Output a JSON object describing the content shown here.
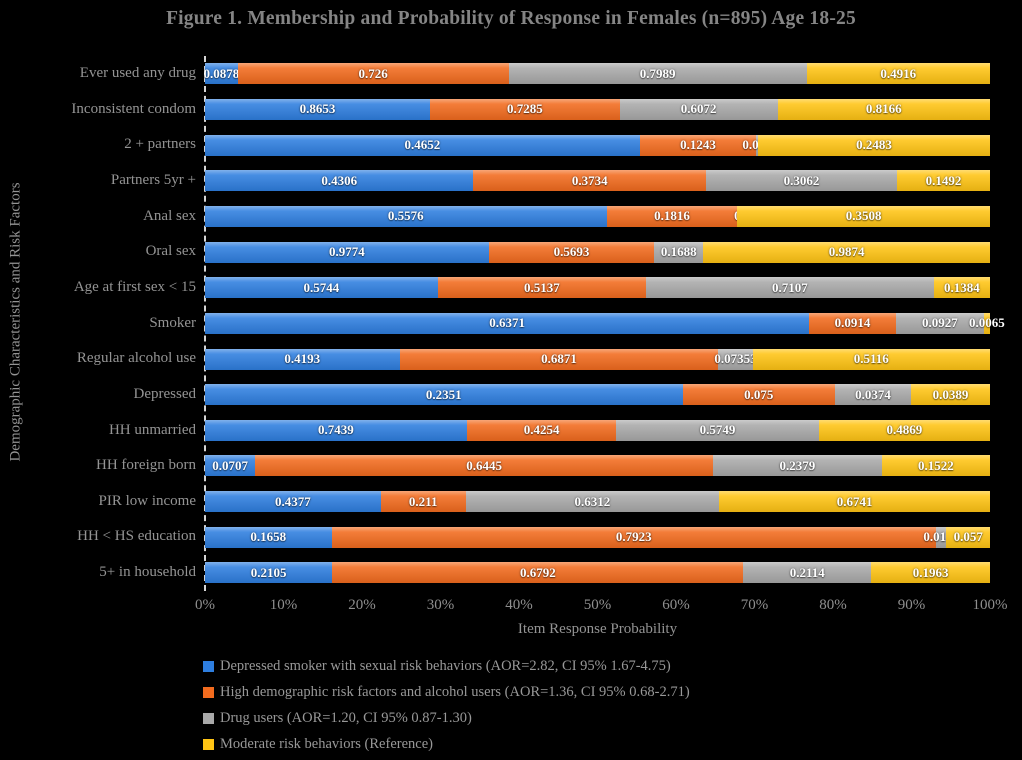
{
  "title": "Figure 1. Membership and Probability of Response in Females (n=895) Age 18-25",
  "colors": {
    "background": "#000000",
    "title_text": "#858585",
    "axis_text": "#949494",
    "value_label_text": "#ffffff",
    "blue": "#2E7EDF",
    "orange": "#F26B1E",
    "gray": "#A9A9A9",
    "yellow": "#FFC414"
  },
  "chart_data": {
    "type": "bar",
    "subtype": "100%-stacked-horizontal",
    "title": "Figure 1. Membership and Probability of Response in Females (n=895) Age 18-25",
    "xlabel": "Item Response Probability",
    "ylabel": "Demographic Characteristics and Risk Factors",
    "x_ticks": [
      "0%",
      "10%",
      "20%",
      "30%",
      "40%",
      "50%",
      "60%",
      "70%",
      "80%",
      "90%",
      "100%"
    ],
    "xlim": [
      0,
      1
    ],
    "grid": false,
    "legend_position": "bottom-left",
    "categories": [
      "Ever used any drug",
      "Inconsistent condom",
      "2 + partners",
      "Partners 5yr +",
      "Anal sex",
      "Oral sex",
      "Age at first sex < 15",
      "Smoker",
      "Regular alcohol use",
      "Depressed",
      "HH unmarried",
      "HH foreign born",
      "PIR low income",
      "HH < HS education",
      "5+ in household"
    ],
    "series": [
      {
        "name": "Depressed smoker with sexual risk behaviors (AOR=2.82, CI 95% 1.67-4.75)",
        "color": "#2E7EDF",
        "values": [
          "0.0878",
          "0.8653",
          "0.4652",
          "0.4306",
          "0.5576",
          "0.9774",
          "0.5744",
          "0.6371",
          "0.4193",
          "0.2351",
          "0.7439",
          "0.0707",
          "0.4377",
          "0.1658",
          "0.2105"
        ]
      },
      {
        "name": "High demographic risk factors and alcohol users (AOR=1.36, CI 95% 0.68-2.71)",
        "color": "#F26B1E",
        "values": [
          "0.726",
          "0.7285",
          "0.1243",
          "0.3734",
          "0.1816",
          "0.5693",
          "0.5137",
          "0.0914",
          "0.6871",
          "0.075",
          "0.4254",
          "0.6445",
          "0.211",
          "0.7923",
          "0.6792"
        ]
      },
      {
        "name": "Drug users (AOR=1.20, CI 95% 0.87-1.30)",
        "color": "#A9A9A9",
        "values": [
          "0.7989",
          "0.6072",
          "0.002",
          "0.3062",
          "0",
          "0.1688",
          "0.7107",
          "0.0927",
          "0.07353",
          "0.0374",
          "0.5749",
          "0.2379",
          "0.6312",
          "0.0137",
          "0.2114"
        ]
      },
      {
        "name": "Moderate risk behaviors (Reference)",
        "color": "#FFC414",
        "values": [
          "0.4916",
          "0.8166",
          "0.2483",
          "0.1492",
          "0.3508",
          "0.9874",
          "0.1384",
          "0.0065",
          "0.5116",
          "0.0389",
          "0.4869",
          "0.1522",
          "0.6741",
          "0.057",
          "0.1963"
        ]
      }
    ]
  }
}
